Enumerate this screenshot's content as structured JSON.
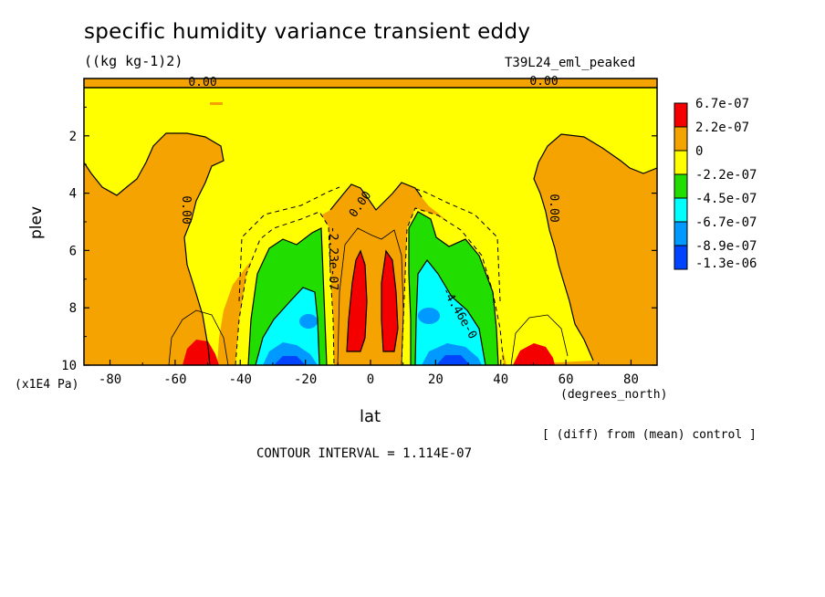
{
  "chart_data": {
    "type": "contour",
    "title": "specific humidity variance transient eddy",
    "units": "((kg kg-1)2)",
    "run_label": "T39L24_eml_peaked",
    "xlabel": "lat",
    "ylabel": "plev",
    "x_units": "(degrees_north)",
    "y_units": "(x1E4 Pa)",
    "xlim": [
      -88,
      88
    ],
    "ylim": [
      10,
      0
    ],
    "x_ticks": [
      "-80",
      "-60",
      "-40",
      "-20",
      "0",
      "20",
      "40",
      "60",
      "80"
    ],
    "y_ticks": [
      "2",
      "4",
      "6",
      "8",
      "10"
    ],
    "diff_note": "[ (diff) from (mean) control ]",
    "contour_interval": "CONTOUR INTERVAL = 1.114E-07",
    "contour_labels": [
      "0.00",
      "0.00",
      "0.00",
      "0.00",
      "0.00",
      "-2.23e-07",
      "-4.46e-0"
    ],
    "legend": [
      {
        "label": "6.7e-07",
        "color": "#f40000"
      },
      {
        "label": "2.2e-07",
        "color": "#f5a300"
      },
      {
        "label": "0",
        "color": "#ffff00"
      },
      {
        "label": "-2.2e-07",
        "color": "#22dd00"
      },
      {
        "label": "-4.5e-07",
        "color": "#00ffff"
      },
      {
        "label": "-6.7e-07",
        "color": "#0099ff"
      },
      {
        "label": "-8.9e-07",
        "color": "#0044ff"
      },
      {
        "label": "-1.3e-06",
        "color": ""
      }
    ]
  }
}
